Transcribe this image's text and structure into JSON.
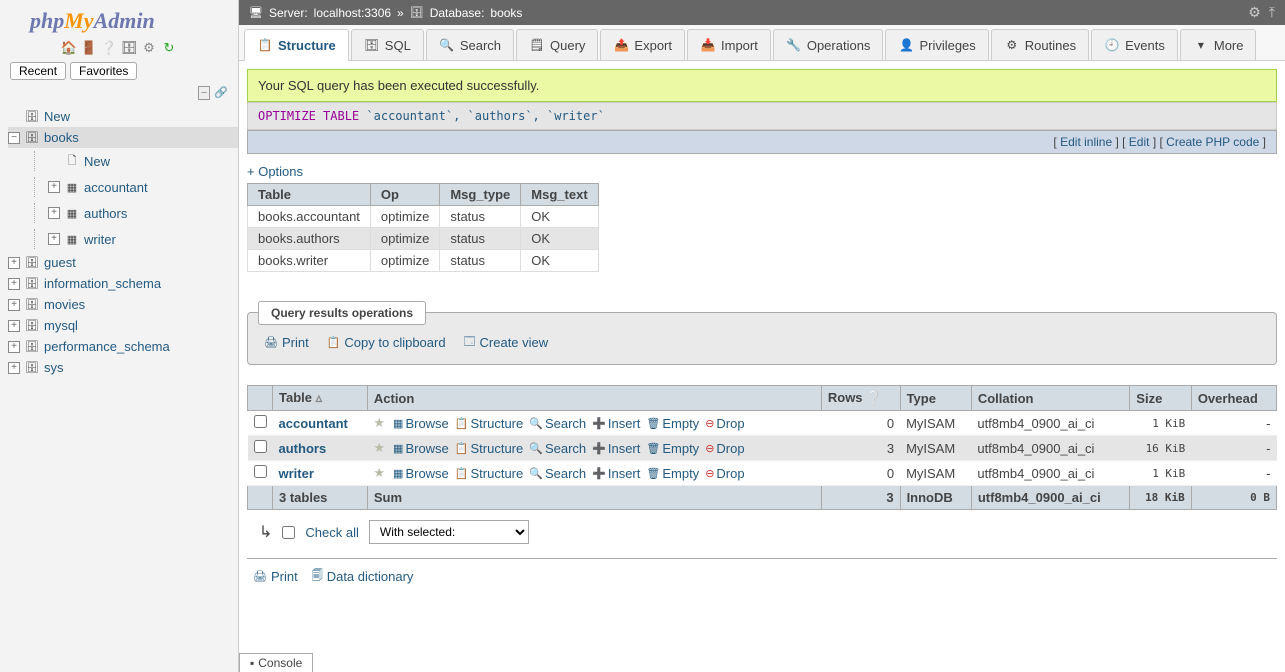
{
  "logo": {
    "p": "php",
    "my": "My",
    "a": "Admin"
  },
  "nav": {
    "recent": "Recent",
    "favorites": "Favorites"
  },
  "tree": {
    "new": "New",
    "db_selected": "books",
    "db_children": [
      {
        "label": "New",
        "type": "new"
      },
      {
        "label": "accountant",
        "type": "table"
      },
      {
        "label": "authors",
        "type": "table"
      },
      {
        "label": "writer",
        "type": "table"
      }
    ],
    "other_dbs": [
      "guest",
      "information_schema",
      "movies",
      "mysql",
      "performance_schema",
      "sys"
    ]
  },
  "breadcrumb": {
    "server_label": "Server:",
    "server_value": "localhost:3306",
    "db_label": "Database:",
    "db_value": "books"
  },
  "tabs": [
    {
      "icon": "📋",
      "label": "Structure",
      "active": true
    },
    {
      "icon": "🗄",
      "label": "SQL"
    },
    {
      "icon": "🔍",
      "label": "Search"
    },
    {
      "icon": "🗒",
      "label": "Query"
    },
    {
      "icon": "📤",
      "label": "Export"
    },
    {
      "icon": "📥",
      "label": "Import"
    },
    {
      "icon": "🔧",
      "label": "Operations"
    },
    {
      "icon": "👤",
      "label": "Privileges"
    },
    {
      "icon": "⚙",
      "label": "Routines"
    },
    {
      "icon": "🕘",
      "label": "Events"
    },
    {
      "icon": "▾",
      "label": "More"
    }
  ],
  "success_msg": "Your SQL query has been executed successfully.",
  "sql": {
    "keyword": "OPTIMIZE TABLE",
    "idents": "`accountant`, `authors`, `writer`"
  },
  "inline_links": {
    "edit_inline": "Edit inline",
    "edit": "Edit",
    "php": "Create PHP code"
  },
  "options": "+ Options",
  "result": {
    "headers": [
      "Table",
      "Op",
      "Msg_type",
      "Msg_text"
    ],
    "rows": [
      [
        "books.accountant",
        "optimize",
        "status",
        "OK"
      ],
      [
        "books.authors",
        "optimize",
        "status",
        "OK"
      ],
      [
        "books.writer",
        "optimize",
        "status",
        "OK"
      ]
    ]
  },
  "ops": {
    "title": "Query results operations",
    "print": "Print",
    "copy": "Copy to clipboard",
    "view": "Create view"
  },
  "list": {
    "headers": {
      "table": "Table",
      "action": "Action",
      "rows": "Rows",
      "type": "Type",
      "collation": "Collation",
      "size": "Size",
      "overhead": "Overhead"
    },
    "actions": {
      "browse": "Browse",
      "structure": "Structure",
      "search": "Search",
      "insert": "Insert",
      "empty": "Empty",
      "drop": "Drop"
    },
    "rows": [
      {
        "name": "accountant",
        "rows": "0",
        "type": "MyISAM",
        "collation": "utf8mb4_0900_ai_ci",
        "size": "1 KiB",
        "overhead": "-"
      },
      {
        "name": "authors",
        "rows": "3",
        "type": "MyISAM",
        "collation": "utf8mb4_0900_ai_ci",
        "size": "16 KiB",
        "overhead": "-"
      },
      {
        "name": "writer",
        "rows": "0",
        "type": "MyISAM",
        "collation": "utf8mb4_0900_ai_ci",
        "size": "1 KiB",
        "overhead": "-"
      }
    ],
    "sum": {
      "label": "3 tables",
      "sum": "Sum",
      "rows": "3",
      "type": "InnoDB",
      "collation": "utf8mb4_0900_ai_ci",
      "size": "18 KiB",
      "overhead": "0 B"
    }
  },
  "check": {
    "all": "Check all",
    "with": "With selected:"
  },
  "bottom": {
    "print": "Print",
    "dict": "Data dictionary"
  },
  "console": "Console"
}
